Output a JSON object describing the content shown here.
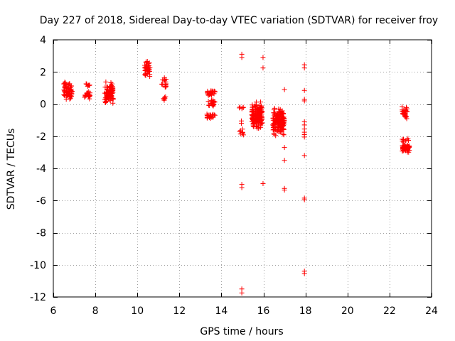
{
  "chart_data": {
    "type": "scatter",
    "title": "Day 227 of 2018, Sidereal Day-to-day VTEC variation (SDTVAR) for receiver froy",
    "xlabel": "GPS time / hours",
    "ylabel": "SDTVAR / TECUs",
    "xlim": [
      6,
      24
    ],
    "ylim": [
      -12,
      4
    ],
    "xticks": [
      6,
      8,
      10,
      12,
      14,
      16,
      18,
      20,
      22,
      24
    ],
    "yticks": [
      -12,
      -10,
      -8,
      -6,
      -4,
      -2,
      0,
      2,
      4
    ],
    "grid": true,
    "marker": "+",
    "marker_color": "#ff0000",
    "clusters": [
      {
        "x": [
          6.5,
          6.9
        ],
        "y": [
          0.2,
          1.4
        ],
        "n": 70
      },
      {
        "x": [
          7.45,
          7.75
        ],
        "y": [
          0.3,
          0.8
        ],
        "n": 20
      },
      {
        "x": [
          7.5,
          7.8
        ],
        "y": [
          1.1,
          1.3
        ],
        "n": 8
      },
      {
        "x": [
          8.45,
          8.85
        ],
        "y": [
          0.0,
          1.4
        ],
        "n": 90
      },
      {
        "x": [
          10.35,
          10.6
        ],
        "y": [
          1.7,
          2.7
        ],
        "n": 40
      },
      {
        "x": [
          11.15,
          11.4
        ],
        "y": [
          0.9,
          1.7
        ],
        "n": 16
      },
      {
        "x": [
          11.2,
          11.35
        ],
        "y": [
          0.2,
          0.5
        ],
        "n": 6
      },
      {
        "x": [
          13.3,
          13.7
        ],
        "y": [
          0.5,
          0.9
        ],
        "n": 25
      },
      {
        "x": [
          13.3,
          13.7
        ],
        "y": [
          -0.2,
          0.3
        ],
        "n": 20
      },
      {
        "x": [
          13.3,
          13.7
        ],
        "y": [
          -0.95,
          -0.55
        ],
        "n": 20
      },
      {
        "x": [
          14.85,
          15.05
        ],
        "y": [
          -0.35,
          -0.1
        ],
        "n": 5
      },
      {
        "x": [
          14.85,
          15.05
        ],
        "y": [
          -2.0,
          -1.5
        ],
        "n": 8
      },
      {
        "x": [
          15.45,
          15.95
        ],
        "y": [
          -1.6,
          0.2
        ],
        "n": 150
      },
      {
        "x": [
          16.45,
          17.0
        ],
        "y": [
          -2.0,
          -0.2
        ],
        "n": 150
      },
      {
        "x": [
          22.6,
          22.85
        ],
        "y": [
          -1.0,
          -0.1
        ],
        "n": 25
      },
      {
        "x": [
          22.6,
          22.9
        ],
        "y": [
          -2.4,
          -2.1
        ],
        "n": 10
      },
      {
        "x": [
          22.6,
          22.95
        ],
        "y": [
          -3.0,
          -2.5
        ],
        "n": 50
      }
    ],
    "points": [
      {
        "x": 14.97,
        "y": 3.1
      },
      {
        "x": 14.97,
        "y": 2.9
      },
      {
        "x": 14.95,
        "y": -1.05
      },
      {
        "x": 14.95,
        "y": -1.2
      },
      {
        "x": 14.97,
        "y": -5.0
      },
      {
        "x": 14.97,
        "y": -5.2
      },
      {
        "x": 14.97,
        "y": -11.5
      },
      {
        "x": 14.97,
        "y": -11.75
      },
      {
        "x": 15.98,
        "y": 2.9
      },
      {
        "x": 15.98,
        "y": 2.25
      },
      {
        "x": 15.98,
        "y": -4.95
      },
      {
        "x": 17.0,
        "y": 0.9
      },
      {
        "x": 17.0,
        "y": -2.7
      },
      {
        "x": 17.0,
        "y": -3.5
      },
      {
        "x": 17.0,
        "y": -5.25
      },
      {
        "x": 17.0,
        "y": -5.35
      },
      {
        "x": 17.95,
        "y": 2.45
      },
      {
        "x": 17.95,
        "y": 2.25
      },
      {
        "x": 17.95,
        "y": 0.85
      },
      {
        "x": 17.95,
        "y": 0.3
      },
      {
        "x": 17.95,
        "y": 0.2
      },
      {
        "x": 17.95,
        "y": -1.1
      },
      {
        "x": 17.95,
        "y": -1.3
      },
      {
        "x": 17.95,
        "y": -1.55
      },
      {
        "x": 17.95,
        "y": -1.75
      },
      {
        "x": 17.95,
        "y": -1.9
      },
      {
        "x": 17.95,
        "y": -2.05
      },
      {
        "x": 17.95,
        "y": -3.2
      },
      {
        "x": 17.95,
        "y": -5.85
      },
      {
        "x": 17.95,
        "y": -5.95
      },
      {
        "x": 17.95,
        "y": -10.4
      },
      {
        "x": 17.95,
        "y": -10.55
      }
    ]
  }
}
